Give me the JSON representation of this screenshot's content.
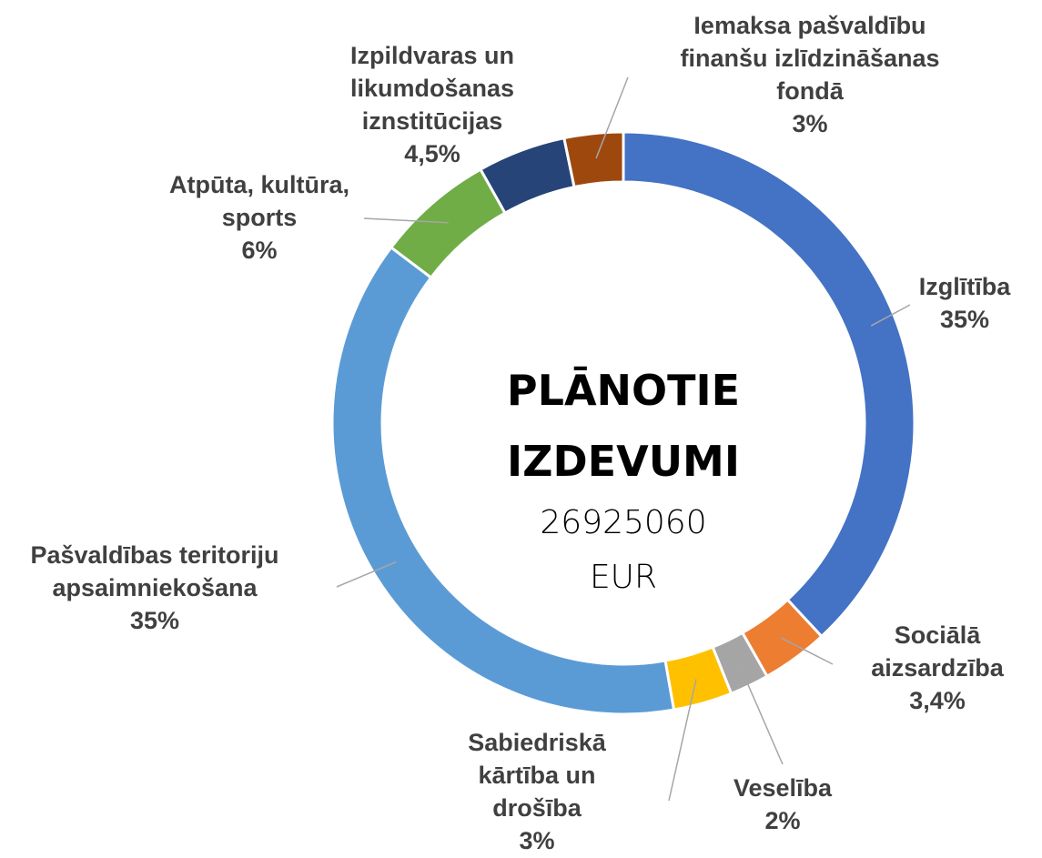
{
  "chart_data": {
    "type": "donut",
    "title": "PLĀNOTIE IZDEVUMI",
    "center_text": "26925060 EUR",
    "categories": [
      "Izglītība",
      "Sociālā aizsardzība",
      "Veselība",
      "Sabiedriskā kārtība un drošība",
      "Pašvaldības teritoriju apsaimniekošana",
      "Atpūta, kultūra, sports",
      "Izpildvaras un likumdošanas iznstitūcijas",
      "Iemaksa pašvaldību finanšu izlīdzināšanas fondā"
    ],
    "values": [
      35,
      3.4,
      2,
      3,
      35,
      6,
      4.5,
      3
    ],
    "value_labels": [
      "35%",
      "3,4%",
      "2%",
      "3%",
      "35%",
      "6%",
      "4,5%",
      "3%"
    ],
    "colors": [
      "#4472c4",
      "#ed7d31",
      "#a5a5a5",
      "#ffc000",
      "#5b9bd5",
      "#70ad47",
      "#264478",
      "#9e480e"
    ]
  }
}
